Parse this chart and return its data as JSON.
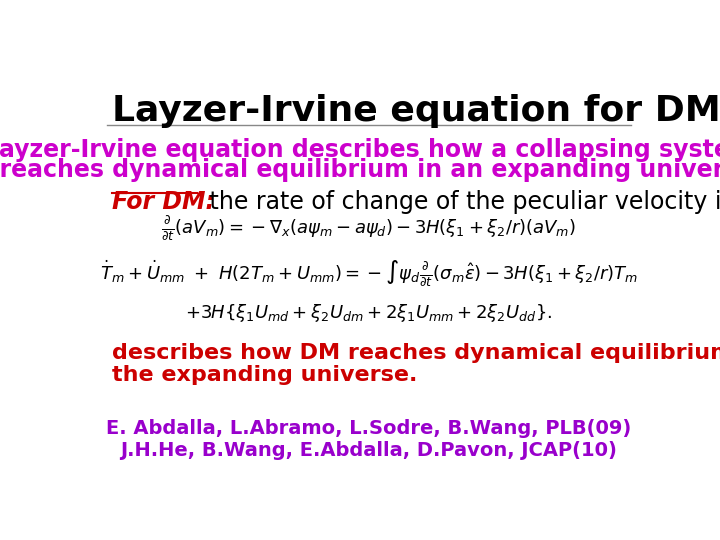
{
  "title": "Layzer-Irvine equation for DM",
  "title_color": "#000000",
  "title_fontsize": 26,
  "subtitle_line1": "Layzer-Irvine equation describes how a collapsing system",
  "subtitle_line2": "  reaches dynamical equilibrium in an expanding universe",
  "subtitle_color": "#cc00cc",
  "subtitle_fontsize": 17,
  "for_dm_label": "For DM:",
  "for_dm_color": "#cc0000",
  "for_dm_fontsize": 17,
  "for_dm_rest": " the rate of change of the peculiar velocity is",
  "for_dm_rest_color": "#000000",
  "eq_color": "#000000",
  "eq_fontsize": 13,
  "conclusion_line1": "describes how DM reaches dynamical equilibrium in the collapsing system in",
  "conclusion_line2": "the expanding universe.",
  "conclusion_color": "#cc0000",
  "conclusion_fontsize": 16,
  "ref1": "E. Abdalla, L.Abramo, L.Sodre, B.Wang, PLB(09)",
  "ref2": "J.H.He, B.Wang, E.Abdalla, D.Pavon, JCAP(10)",
  "ref_color": "#9900cc",
  "ref_fontsize": 14,
  "bg_color": "#ffffff",
  "border_color": "#aaaaaa",
  "sep_color": "#888888",
  "sep_linewidth": 1.0
}
